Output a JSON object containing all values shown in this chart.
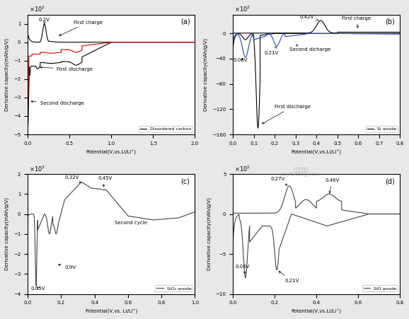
{
  "fig_size": [
    5.78,
    4.51
  ],
  "dpi": 100,
  "subplots": [
    {
      "label": "(a)",
      "xlim": [
        0,
        2.0
      ],
      "ylim": [
        -5,
        1.5
      ],
      "xticks": [
        0.0,
        0.5,
        1.0,
        1.5,
        2.0
      ],
      "yticks": [
        -5,
        -4,
        -3,
        -2,
        -1,
        0,
        1
      ],
      "ylabel": "Derivative capacity(mAh/g/V)",
      "xlabel": "Potential(V,vs.Li/LI⁺)",
      "scale_label": "×10²",
      "legend": "Disordered carbon"
    },
    {
      "label": "(b)",
      "xlim": [
        0,
        0.8
      ],
      "ylim": [
        -160,
        30
      ],
      "xticks": [
        0.0,
        0.1,
        0.2,
        0.3,
        0.4,
        0.5,
        0.6,
        0.7,
        0.8
      ],
      "yticks": [
        -160,
        -120,
        -80,
        -40,
        0
      ],
      "ylabel": "Derivative capacity(mAh/g/V)",
      "xlabel": "Potential(V,vs.Li/Li⁺)",
      "scale_label": "×10²",
      "legend": "Si anode"
    },
    {
      "label": "(c)",
      "xlim": [
        0,
        1.0
      ],
      "ylim": [
        -4,
        2
      ],
      "xticks": [
        0.0,
        0.2,
        0.4,
        0.6,
        0.8,
        1.0
      ],
      "yticks": [
        -4,
        -3,
        -2,
        -1,
        0,
        1,
        2
      ],
      "ylabel": "Derivative capacity(mAh/g/V)",
      "xlabel": "Potential(V,vs. Li/Li⁺)",
      "scale_label": "×10³",
      "legend": "SiO₂ anode"
    },
    {
      "label": "(d)",
      "xlim": [
        0,
        0.8
      ],
      "ylim": [
        -10,
        5
      ],
      "xticks": [
        0.0,
        0.2,
        0.4,
        0.6,
        0.8
      ],
      "yticks": [
        -10,
        -5,
        0,
        5
      ],
      "ylabel": "Derivative capacity(mAh/g/V)",
      "xlabel": "Potential(V,vs.Li/Li⁺)",
      "scale_label": "×10¹",
      "legend": "SiO anode"
    }
  ]
}
